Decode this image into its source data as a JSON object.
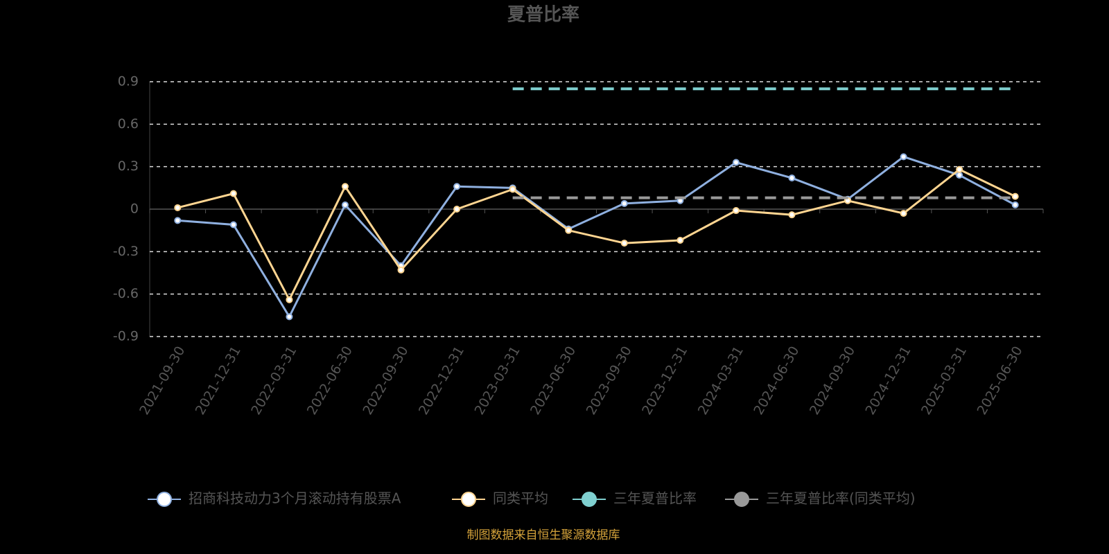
{
  "chart_data": {
    "type": "line",
    "title": "夏普比率",
    "source": "制图数据来自恒生聚源数据库",
    "categories": [
      "2021-09-30",
      "2021-12-31",
      "2022-03-31",
      "2022-06-30",
      "2022-09-30",
      "2022-12-31",
      "2023-03-31",
      "2023-06-30",
      "2023-09-30",
      "2023-12-31",
      "2024-03-31",
      "2024-06-30",
      "2024-09-30",
      "2024-12-31",
      "2025-03-31",
      "2025-06-30"
    ],
    "series": [
      {
        "name": "招商科技动力3个月滚动持有股票A",
        "color": "#8fb0e0",
        "line_style": "solid",
        "markers": true,
        "values": [
          -0.08,
          -0.11,
          -0.76,
          0.03,
          -0.4,
          0.16,
          0.15,
          -0.14,
          0.04,
          0.06,
          0.33,
          0.22,
          0.07,
          0.37,
          0.24,
          0.03
        ]
      },
      {
        "name": "同类平均",
        "color": "#ffd591",
        "line_style": "solid",
        "markers": true,
        "values": [
          0.01,
          0.11,
          -0.64,
          0.16,
          -0.43,
          0.0,
          0.14,
          -0.15,
          -0.24,
          -0.22,
          -0.01,
          -0.04,
          0.06,
          -0.03,
          0.28,
          0.09
        ]
      },
      {
        "name": "三年夏普比率",
        "color": "#7fd0d0",
        "line_style": "dashed",
        "markers": false,
        "values": [
          null,
          null,
          null,
          null,
          null,
          null,
          0.85,
          0.85,
          0.85,
          0.85,
          0.85,
          0.85,
          0.85,
          0.85,
          0.85,
          0.85
        ]
      },
      {
        "name": "三年夏普比率(同类平均)",
        "color": "#999999",
        "line_style": "dashed",
        "markers": false,
        "values": [
          null,
          null,
          null,
          null,
          null,
          null,
          0.08,
          0.08,
          0.08,
          0.08,
          0.08,
          0.08,
          0.08,
          0.08,
          0.08,
          0.08
        ]
      }
    ],
    "ylim": [
      -0.9,
      0.9
    ],
    "yticks": [
      -0.9,
      -0.6,
      -0.3,
      0,
      0.3,
      0.6,
      0.9
    ],
    "grid": true,
    "legend": "bottom"
  }
}
